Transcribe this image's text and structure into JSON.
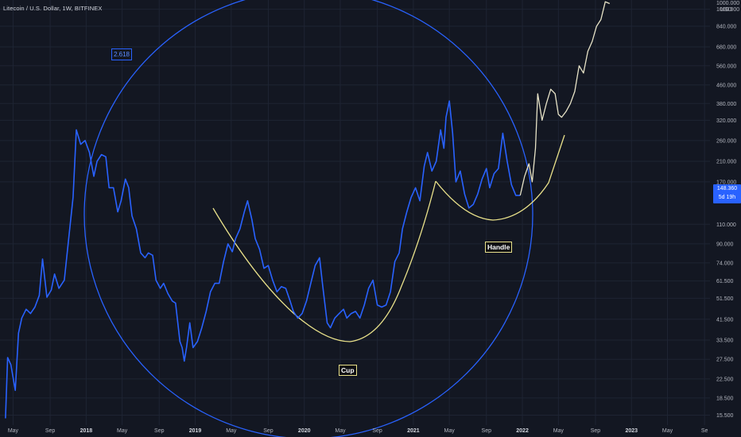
{
  "title": "Litecoin / U.S. Dollar, 1W, BITFINEX",
  "price_tag": {
    "value": "148.360",
    "countdown": "5d 19h"
  },
  "fib_label": "2.618",
  "annotations": {
    "cup": "Cup",
    "handle": "Handle"
  },
  "colors": {
    "background": "#131722",
    "grid": "#1e2433",
    "price_line": "#2962ff",
    "curve": "#e9e18a",
    "projection": "#e7e3c7",
    "circle": "#2962ff"
  },
  "chart_data": {
    "type": "line",
    "title": "Litecoin / U.S. Dollar, 1W, BITFINEX",
    "y_scale": "log",
    "ylim": [
      14,
      1100
    ],
    "x_range": [
      "2017-03",
      "2024-09"
    ],
    "x_tick_labels": [
      {
        "t": 2017.33,
        "label": "May"
      },
      {
        "t": 2017.67,
        "label": "Sep"
      },
      {
        "t": 2018.0,
        "label": "2018"
      },
      {
        "t": 2018.33,
        "label": "May"
      },
      {
        "t": 2018.67,
        "label": "Sep"
      },
      {
        "t": 2019.0,
        "label": "2019"
      },
      {
        "t": 2019.33,
        "label": "May"
      },
      {
        "t": 2019.67,
        "label": "Sep"
      },
      {
        "t": 2020.0,
        "label": "2020"
      },
      {
        "t": 2020.33,
        "label": "May"
      },
      {
        "t": 2020.67,
        "label": "Sep"
      },
      {
        "t": 2021.0,
        "label": "2021"
      },
      {
        "t": 2021.33,
        "label": "May"
      },
      {
        "t": 2021.67,
        "label": "Sep"
      },
      {
        "t": 2022.0,
        "label": "2022"
      },
      {
        "t": 2022.33,
        "label": "May"
      },
      {
        "t": 2022.67,
        "label": "Sep"
      },
      {
        "t": 2023.0,
        "label": "2023"
      },
      {
        "t": 2023.33,
        "label": "May"
      },
      {
        "t": 2023.67,
        "label": "Se"
      }
    ],
    "y_tick_labels": [
      {
        "v": 15.5,
        "label": "15.500"
      },
      {
        "v": 18.5,
        "label": "18.500"
      },
      {
        "v": 22.5,
        "label": "22.500"
      },
      {
        "v": 27.5,
        "label": "27.500"
      },
      {
        "v": 33.5,
        "label": "33.500"
      },
      {
        "v": 41.5,
        "label": "41.500"
      },
      {
        "v": 51.5,
        "label": "51.500"
      },
      {
        "v": 61.5,
        "label": "61.500"
      },
      {
        "v": 74,
        "label": "74.000"
      },
      {
        "v": 90,
        "label": "90.000"
      },
      {
        "v": 110,
        "label": "110.000"
      },
      {
        "v": 170,
        "label": "170.000"
      },
      {
        "v": 210,
        "label": "210.000"
      },
      {
        "v": 260,
        "label": "260.000"
      },
      {
        "v": 320,
        "label": "320.000"
      },
      {
        "v": 380,
        "label": "380.000"
      },
      {
        "v": 460,
        "label": "460.000"
      },
      {
        "v": 560,
        "label": "560.000"
      },
      {
        "v": 680,
        "label": "680.000"
      },
      {
        "v": 840,
        "label": "840.000"
      },
      {
        "v": 1000,
        "label": "1000.000"
      }
    ],
    "y_unit": "USD",
    "series": [
      {
        "points": [
          [
            2017.26,
            15
          ],
          [
            2017.28,
            28
          ],
          [
            2017.31,
            26
          ],
          [
            2017.35,
            20
          ],
          [
            2017.38,
            36
          ],
          [
            2017.41,
            42
          ],
          [
            2017.45,
            46
          ],
          [
            2017.49,
            44
          ],
          [
            2017.53,
            47
          ],
          [
            2017.57,
            53
          ],
          [
            2017.6,
            77
          ],
          [
            2017.64,
            52
          ],
          [
            2017.68,
            56
          ],
          [
            2017.71,
            66
          ],
          [
            2017.75,
            57
          ],
          [
            2017.8,
            62
          ],
          [
            2017.84,
            95
          ],
          [
            2017.88,
            145
          ],
          [
            2017.91,
            290
          ],
          [
            2017.95,
            250
          ],
          [
            2017.99,
            260
          ],
          [
            2018.03,
            230
          ],
          [
            2018.07,
            180
          ],
          [
            2018.1,
            210
          ],
          [
            2018.14,
            225
          ],
          [
            2018.18,
            220
          ],
          [
            2018.21,
            160
          ],
          [
            2018.25,
            160
          ],
          [
            2018.29,
            125
          ],
          [
            2018.32,
            140
          ],
          [
            2018.36,
            175
          ],
          [
            2018.39,
            160
          ],
          [
            2018.42,
            120
          ],
          [
            2018.46,
            105
          ],
          [
            2018.5,
            82
          ],
          [
            2018.54,
            78
          ],
          [
            2018.57,
            82
          ],
          [
            2018.61,
            80
          ],
          [
            2018.64,
            62
          ],
          [
            2018.68,
            57
          ],
          [
            2018.71,
            60
          ],
          [
            2018.75,
            54
          ],
          [
            2018.79,
            50
          ],
          [
            2018.82,
            49
          ],
          [
            2018.86,
            33
          ],
          [
            2018.88,
            31
          ],
          [
            2018.9,
            27
          ],
          [
            2018.92,
            31
          ],
          [
            2018.95,
            40
          ],
          [
            2018.98,
            31
          ],
          [
            2019.02,
            33
          ],
          [
            2019.06,
            38
          ],
          [
            2019.1,
            45
          ],
          [
            2019.14,
            55
          ],
          [
            2019.18,
            60
          ],
          [
            2019.22,
            60
          ],
          [
            2019.26,
            75
          ],
          [
            2019.3,
            90
          ],
          [
            2019.34,
            83
          ],
          [
            2019.37,
            95
          ],
          [
            2019.41,
            105
          ],
          [
            2019.45,
            125
          ],
          [
            2019.48,
            140
          ],
          [
            2019.52,
            115
          ],
          [
            2019.55,
            95
          ],
          [
            2019.59,
            85
          ],
          [
            2019.63,
            70
          ],
          [
            2019.67,
            72
          ],
          [
            2019.71,
            62
          ],
          [
            2019.75,
            55
          ],
          [
            2019.79,
            58
          ],
          [
            2019.83,
            57
          ],
          [
            2019.87,
            50
          ],
          [
            2019.9,
            45
          ],
          [
            2019.94,
            42
          ],
          [
            2019.98,
            44
          ],
          [
            2020.02,
            50
          ],
          [
            2020.06,
            60
          ],
          [
            2020.1,
            72
          ],
          [
            2020.14,
            78
          ],
          [
            2020.17,
            58
          ],
          [
            2020.21,
            40
          ],
          [
            2020.24,
            38
          ],
          [
            2020.28,
            42
          ],
          [
            2020.32,
            44
          ],
          [
            2020.36,
            46
          ],
          [
            2020.39,
            42
          ],
          [
            2020.43,
            44
          ],
          [
            2020.47,
            45
          ],
          [
            2020.51,
            42
          ],
          [
            2020.55,
            48
          ],
          [
            2020.59,
            57
          ],
          [
            2020.63,
            62
          ],
          [
            2020.67,
            48
          ],
          [
            2020.71,
            47
          ],
          [
            2020.75,
            48
          ],
          [
            2020.79,
            55
          ],
          [
            2020.83,
            75
          ],
          [
            2020.87,
            82
          ],
          [
            2020.9,
            105
          ],
          [
            2020.94,
            125
          ],
          [
            2020.98,
            145
          ],
          [
            2021.02,
            160
          ],
          [
            2021.06,
            140
          ],
          [
            2021.1,
            200
          ],
          [
            2021.13,
            230
          ],
          [
            2021.17,
            190
          ],
          [
            2021.21,
            210
          ],
          [
            2021.25,
            290
          ],
          [
            2021.28,
            240
          ],
          [
            2021.3,
            330
          ],
          [
            2021.33,
            390
          ],
          [
            2021.36,
            280
          ],
          [
            2021.39,
            170
          ],
          [
            2021.43,
            190
          ],
          [
            2021.47,
            150
          ],
          [
            2021.51,
            130
          ],
          [
            2021.55,
            135
          ],
          [
            2021.59,
            150
          ],
          [
            2021.63,
            175
          ],
          [
            2021.67,
            195
          ],
          [
            2021.7,
            160
          ],
          [
            2021.74,
            185
          ],
          [
            2021.78,
            195
          ],
          [
            2021.82,
            280
          ],
          [
            2021.86,
            210
          ],
          [
            2021.9,
            165
          ],
          [
            2021.94,
            148
          ],
          [
            2021.98,
            148
          ]
        ]
      }
    ],
    "projection_points": [
      [
        2021.98,
        148
      ],
      [
        2022.02,
        180
      ],
      [
        2022.06,
        205
      ],
      [
        2022.09,
        170
      ],
      [
        2022.12,
        240
      ],
      [
        2022.14,
        420
      ],
      [
        2022.18,
        320
      ],
      [
        2022.22,
        380
      ],
      [
        2022.26,
        440
      ],
      [
        2022.3,
        420
      ],
      [
        2022.33,
        340
      ],
      [
        2022.36,
        330
      ],
      [
        2022.4,
        350
      ],
      [
        2022.44,
        380
      ],
      [
        2022.48,
        430
      ],
      [
        2022.52,
        560
      ],
      [
        2022.56,
        520
      ],
      [
        2022.6,
        650
      ],
      [
        2022.64,
        720
      ],
      [
        2022.68,
        840
      ],
      [
        2022.72,
        900
      ],
      [
        2022.76,
        1080
      ],
      [
        2022.8,
        1060
      ]
    ]
  }
}
